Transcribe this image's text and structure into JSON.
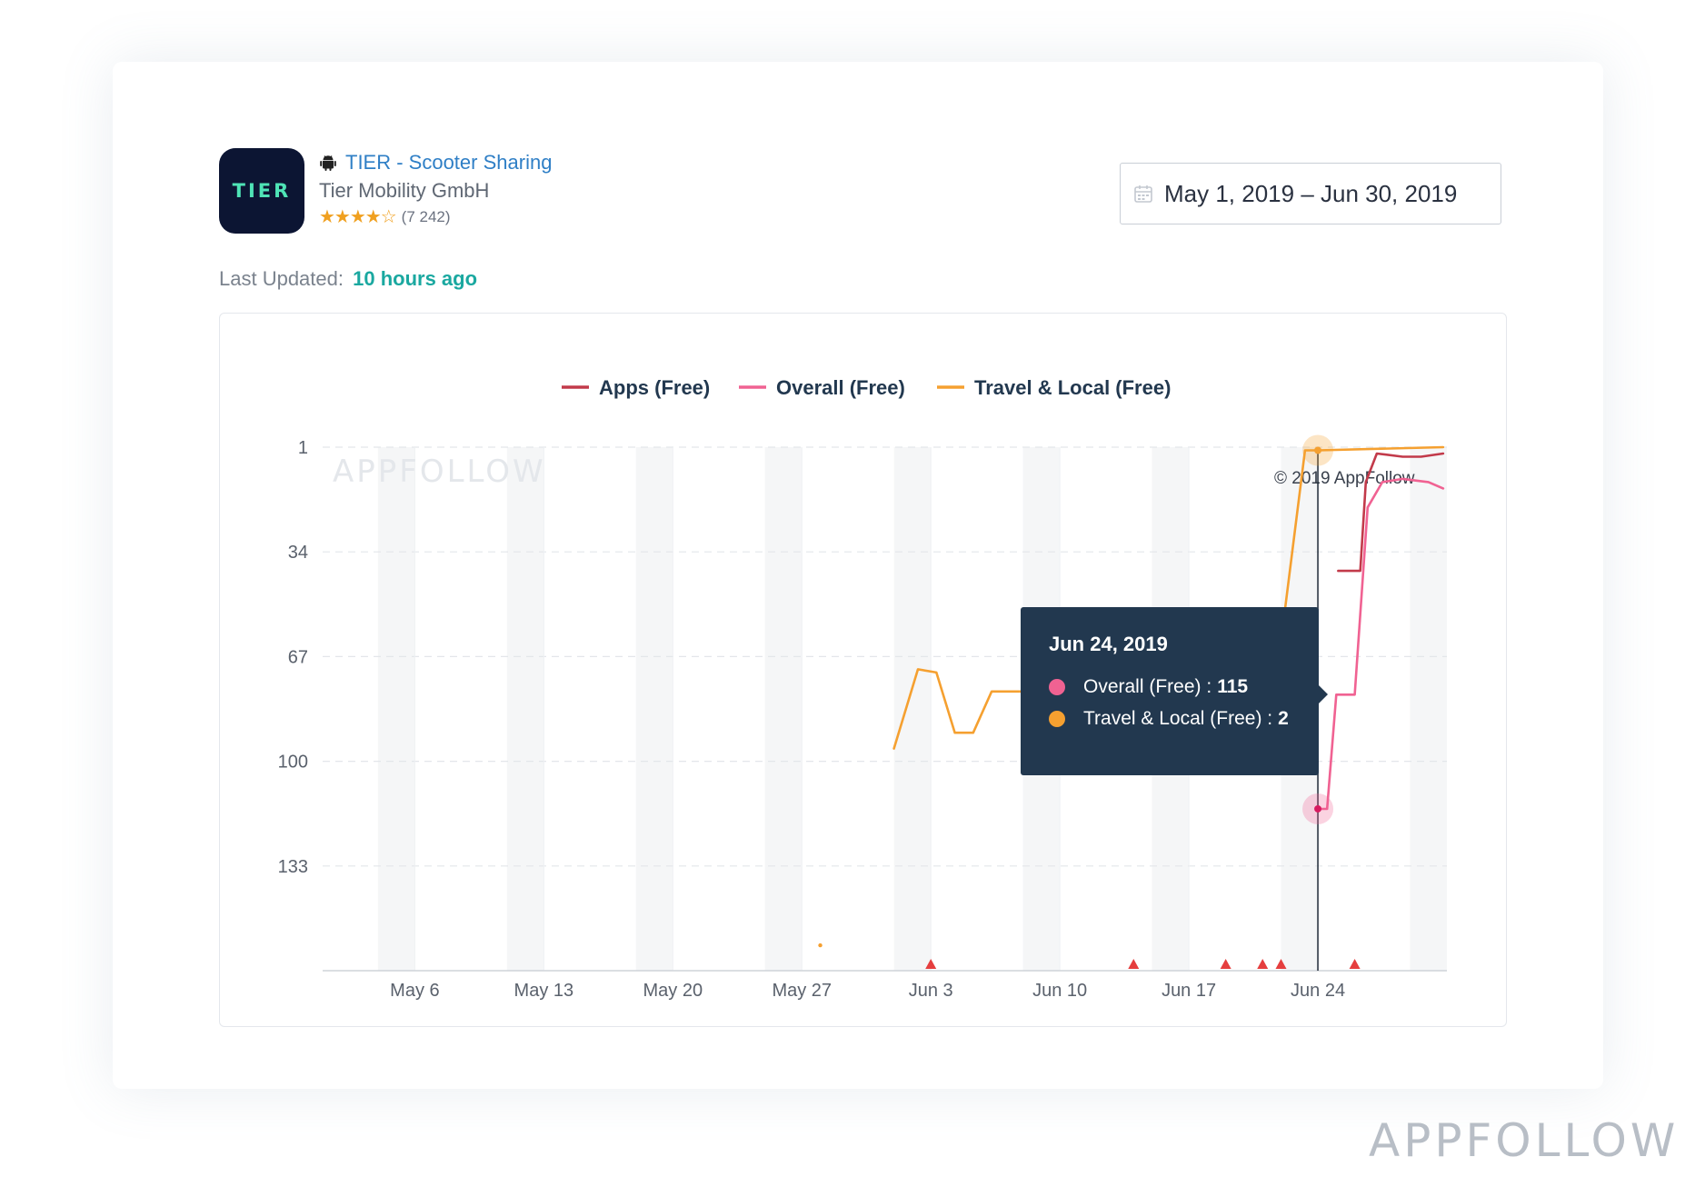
{
  "app": {
    "icon_text": "TIER",
    "title": "TIER - Scooter Sharing",
    "developer": "Tier Mobility GmbH",
    "stars": "★★★★☆",
    "rating_count": "(7 242)",
    "platform_icon": "android-icon"
  },
  "last_updated": {
    "label": "Last Updated:",
    "value": "10 hours ago"
  },
  "date_range": {
    "value": "May 1, 2019 – Jun 30, 2019",
    "icon": "calendar-icon"
  },
  "chart_data": {
    "type": "line",
    "legend": [
      {
        "name": "Apps (Free)",
        "color": "#c23a4a"
      },
      {
        "name": "Overall (Free)",
        "color": "#f06292"
      },
      {
        "name": "Travel & Local (Free)",
        "color": "#f5a030"
      }
    ],
    "y_ticks": [
      "1",
      "34",
      "67",
      "100",
      "133"
    ],
    "y_tick_values": [
      1,
      34,
      67,
      100,
      133
    ],
    "ylim": [
      1,
      166
    ],
    "y_inverted": true,
    "x_ticks": [
      "May 6",
      "May 13",
      "May 20",
      "May 27",
      "Jun 3",
      "Jun 10",
      "Jun 17",
      "Jun 24"
    ],
    "x_tick_days": [
      6,
      13,
      20,
      27,
      34,
      41,
      48,
      55
    ],
    "xlim": [
      1,
      62
    ],
    "grid": true,
    "legend_position": "top-center",
    "watermark": "APPFOLLOW",
    "copyright": "© 2019 AppFollow",
    "series": [
      {
        "name": "Apps (Free)",
        "color": "#c23a4a",
        "points": [
          [
            56.1,
            40
          ],
          [
            57.3,
            40
          ],
          [
            57.6,
            12
          ],
          [
            58.2,
            3
          ],
          [
            59.6,
            4
          ],
          [
            60.6,
            4
          ],
          [
            61.8,
            3
          ]
        ]
      },
      {
        "name": "Overall (Free)",
        "color": "#f06292",
        "points": [
          [
            55,
            115
          ],
          [
            55.5,
            115
          ],
          [
            56,
            79
          ],
          [
            57,
            79
          ],
          [
            57.7,
            20
          ],
          [
            58.5,
            12
          ],
          [
            59.6,
            11
          ],
          [
            61,
            12
          ],
          [
            61.8,
            14
          ]
        ]
      },
      {
        "name": "Travel & Local (Free)",
        "color": "#f5a030",
        "points": [
          [
            32,
            96
          ],
          [
            33.3,
            71
          ],
          [
            34.3,
            72
          ],
          [
            35.3,
            91
          ],
          [
            36.3,
            91
          ],
          [
            37.3,
            78
          ],
          [
            40.5,
            78
          ],
          [
            42.3,
            104
          ],
          [
            44.8,
            104
          ],
          [
            45.2,
            102
          ],
          [
            46.3,
            85
          ],
          [
            50.3,
            88
          ],
          [
            53.2,
            53
          ],
          [
            54.3,
            2
          ],
          [
            55,
            2
          ],
          [
            61.8,
            1
          ]
        ]
      }
    ],
    "isolated_points": [
      {
        "series": "Travel & Local (Free)",
        "x": 28,
        "y": 158
      }
    ],
    "event_markers_days": [
      34,
      45,
      50,
      52,
      53,
      57
    ],
    "hover": {
      "x": 55,
      "overall": 115,
      "travel": 2
    },
    "weekend_bands": [
      4,
      11,
      18,
      25,
      32,
      39,
      46,
      53,
      60
    ]
  },
  "tooltip": {
    "date": "Jun 24, 2019",
    "rows": [
      {
        "label": "Overall (Free) :",
        "value": "115",
        "color": "#f06292"
      },
      {
        "label": "Travel & Local (Free) :",
        "value": "2",
        "color": "#f5a030"
      }
    ]
  },
  "brand_watermark": "APPFOLLOW"
}
